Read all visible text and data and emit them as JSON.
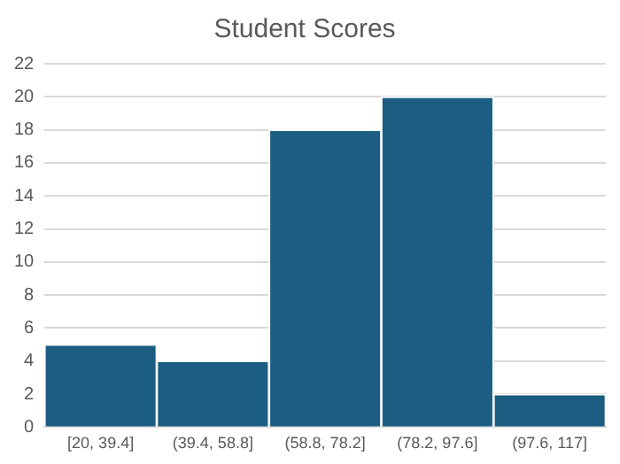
{
  "chart_data": {
    "type": "bar",
    "title": "Student Scores",
    "categories": [
      "[20, 39.4]",
      "(39.4, 58.8]",
      "(58.8, 78.2]",
      "(78.2, 97.6]",
      "(97.6, 117]"
    ],
    "values": [
      5,
      4,
      18,
      20,
      2
    ],
    "color": "#1b5e82",
    "ylim": [
      0,
      22
    ],
    "yticks": [
      0,
      2,
      4,
      6,
      8,
      10,
      12,
      14,
      16,
      18,
      20,
      22
    ],
    "grid": "y"
  }
}
